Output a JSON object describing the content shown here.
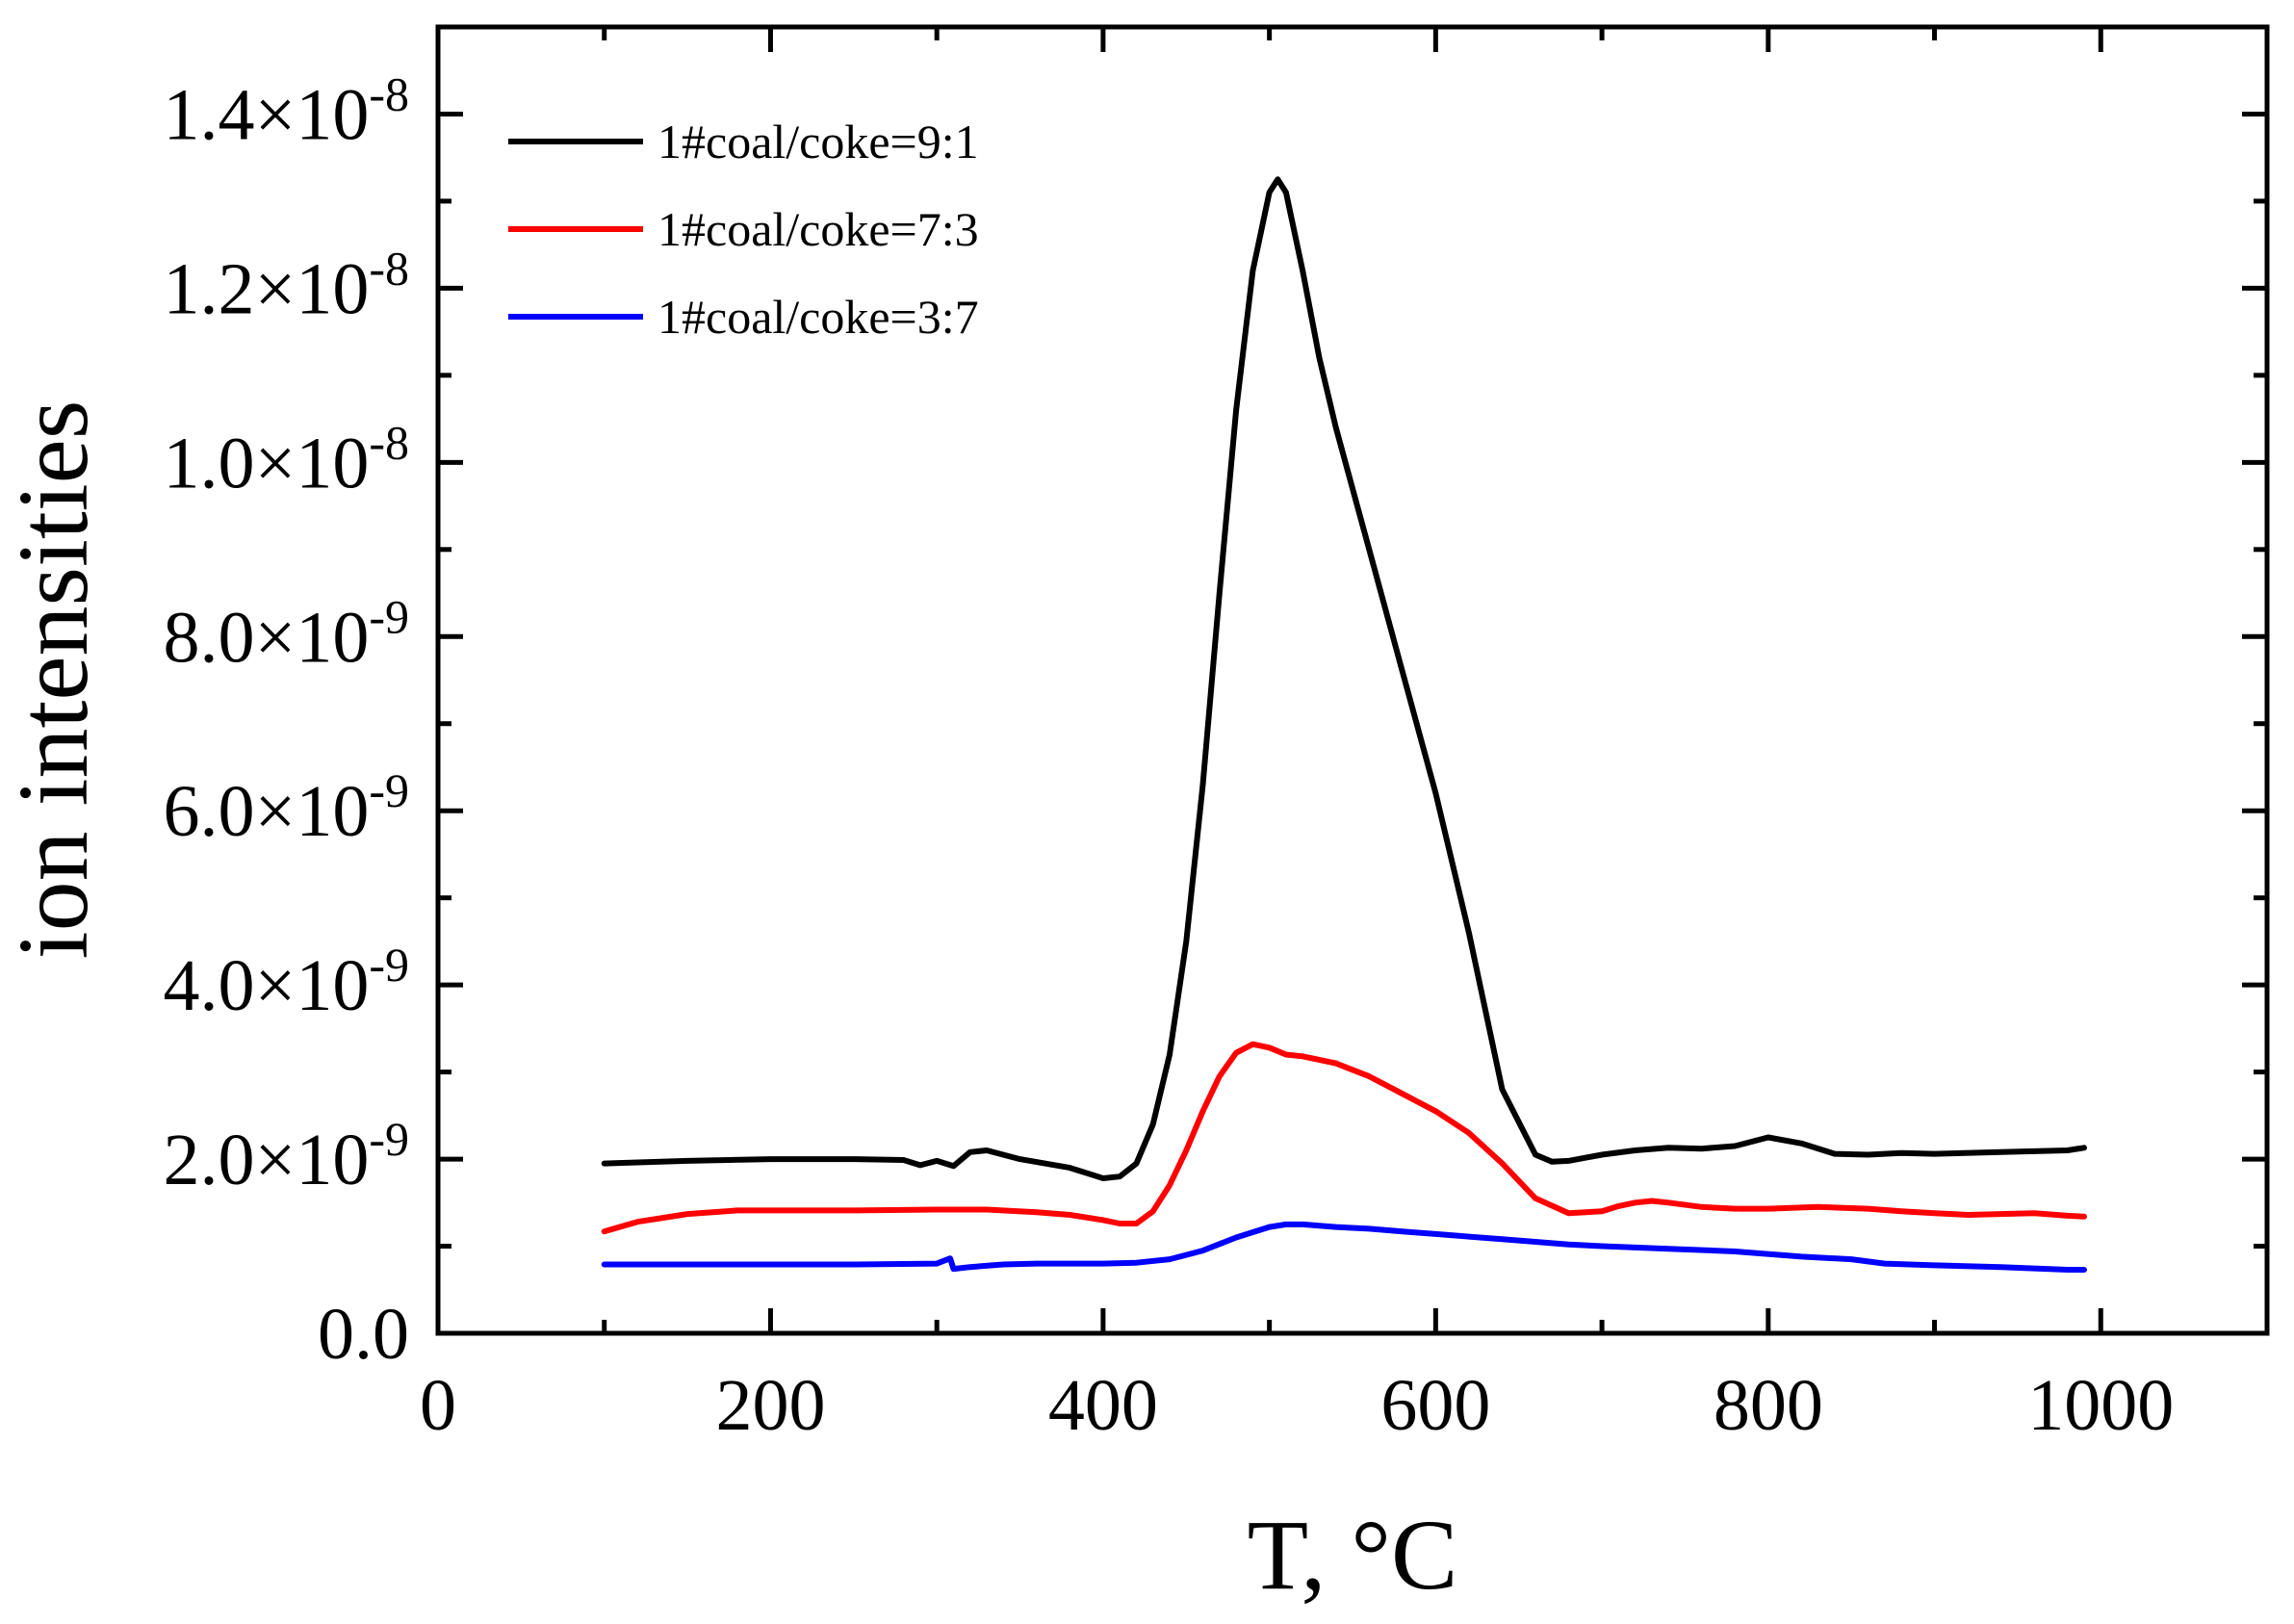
{
  "chart_data": {
    "type": "line",
    "title": "",
    "xlabel": "T, °C",
    "ylabel": "ion intensities",
    "xlim": [
      0,
      1100
    ],
    "ylim": [
      0,
      1.5e-08
    ],
    "x_ticks": [
      0,
      200,
      400,
      600,
      800,
      1000
    ],
    "x_tick_labels": [
      "0",
      "200",
      "400",
      "600",
      "800",
      "1000"
    ],
    "y_ticks": [
      0,
      2e-09,
      4e-09,
      6e-09,
      8e-09,
      1e-08,
      1.2e-08,
      1.4e-08
    ],
    "y_tick_labels": [
      {
        "mantissa": "0.0",
        "exponent": ""
      },
      {
        "mantissa": "2.0×10",
        "exponent": "-9"
      },
      {
        "mantissa": "4.0×10",
        "exponent": "-9"
      },
      {
        "mantissa": "6.0×10",
        "exponent": "-9"
      },
      {
        "mantissa": "8.0×10",
        "exponent": "-9"
      },
      {
        "mantissa": "1.0×10",
        "exponent": "-8"
      },
      {
        "mantissa": "1.2×10",
        "exponent": "-8"
      },
      {
        "mantissa": "1.4×10",
        "exponent": "-8"
      }
    ],
    "grid": false,
    "legend_position": "top-left",
    "series": [
      {
        "name": "1#coal/coke=9:1",
        "color": "#000000",
        "x": [
          100,
          150,
          200,
          250,
          280,
          290,
          300,
          310,
          320,
          330,
          350,
          380,
          400,
          410,
          420,
          430,
          440,
          450,
          460,
          470,
          480,
          490,
          500,
          505,
          510,
          520,
          530,
          540,
          560,
          580,
          600,
          620,
          640,
          660,
          670,
          680,
          700,
          720,
          740,
          760,
          780,
          800,
          820,
          840,
          860,
          880,
          900,
          940,
          980,
          990
        ],
        "y": [
          1.95e-09,
          1.98e-09,
          2e-09,
          2e-09,
          1.99e-09,
          1.93e-09,
          1.98e-09,
          1.92e-09,
          2.08e-09,
          2.1e-09,
          2e-09,
          1.9e-09,
          1.78e-09,
          1.8e-09,
          1.95e-09,
          2.4e-09,
          3.2e-09,
          4.5e-09,
          6.3e-09,
          8.5e-09,
          1.06e-08,
          1.22e-08,
          1.31e-08,
          1.325e-08,
          1.31e-08,
          1.22e-08,
          1.12e-08,
          1.04e-08,
          9e-09,
          7.6e-09,
          6.2e-09,
          4.6e-09,
          2.8e-09,
          2.05e-09,
          1.97e-09,
          1.98e-09,
          2.05e-09,
          2.1e-09,
          2.13e-09,
          2.12e-09,
          2.15e-09,
          2.25e-09,
          2.18e-09,
          2.06e-09,
          2.05e-09,
          2.07e-09,
          2.06e-09,
          2.08e-09,
          2.1e-09,
          2.13e-09
        ]
      },
      {
        "name": "1#coal/coke=7:3",
        "color": "#ff0000",
        "x": [
          100,
          120,
          150,
          180,
          200,
          250,
          300,
          330,
          360,
          380,
          400,
          410,
          420,
          430,
          440,
          450,
          460,
          470,
          480,
          490,
          500,
          510,
          520,
          540,
          560,
          580,
          600,
          620,
          640,
          660,
          680,
          700,
          710,
          720,
          730,
          740,
          760,
          780,
          800,
          830,
          860,
          880,
          900,
          920,
          940,
          960,
          980,
          990
        ],
        "y": [
          1.17e-09,
          1.28e-09,
          1.37e-09,
          1.41e-09,
          1.41e-09,
          1.41e-09,
          1.42e-09,
          1.42e-09,
          1.39e-09,
          1.36e-09,
          1.3e-09,
          1.26e-09,
          1.26e-09,
          1.4e-09,
          1.7e-09,
          2.1e-09,
          2.55e-09,
          2.95e-09,
          3.22e-09,
          3.32e-09,
          3.28e-09,
          3.2e-09,
          3.18e-09,
          3.1e-09,
          2.95e-09,
          2.75e-09,
          2.55e-09,
          2.3e-09,
          1.95e-09,
          1.55e-09,
          1.38e-09,
          1.4e-09,
          1.46e-09,
          1.5e-09,
          1.52e-09,
          1.5e-09,
          1.45e-09,
          1.43e-09,
          1.43e-09,
          1.45e-09,
          1.43e-09,
          1.4e-09,
          1.38e-09,
          1.36e-09,
          1.37e-09,
          1.38e-09,
          1.35e-09,
          1.34e-09
        ]
      },
      {
        "name": "1#coal/coke=3:7",
        "color": "#0000ff",
        "x": [
          100,
          150,
          200,
          250,
          300,
          308,
          310,
          320,
          340,
          360,
          380,
          400,
          420,
          440,
          460,
          480,
          500,
          510,
          520,
          540,
          560,
          580,
          600,
          640,
          680,
          700,
          740,
          780,
          820,
          850,
          870,
          900,
          940,
          980,
          990
        ],
        "y": [
          7.9e-10,
          7.9e-10,
          7.9e-10,
          7.9e-10,
          8e-10,
          8.6e-10,
          7.4e-10,
          7.6e-10,
          7.9e-10,
          8e-10,
          8e-10,
          8e-10,
          8.1e-10,
          8.5e-10,
          9.5e-10,
          1.1e-09,
          1.22e-09,
          1.25e-09,
          1.25e-09,
          1.22e-09,
          1.2e-09,
          1.17e-09,
          1.14e-09,
          1.08e-09,
          1.02e-09,
          1e-09,
          9.7e-10,
          9.4e-10,
          8.8e-10,
          8.5e-10,
          8e-10,
          7.8e-10,
          7.6e-10,
          7.3e-10,
          7.3e-10
        ]
      }
    ]
  }
}
